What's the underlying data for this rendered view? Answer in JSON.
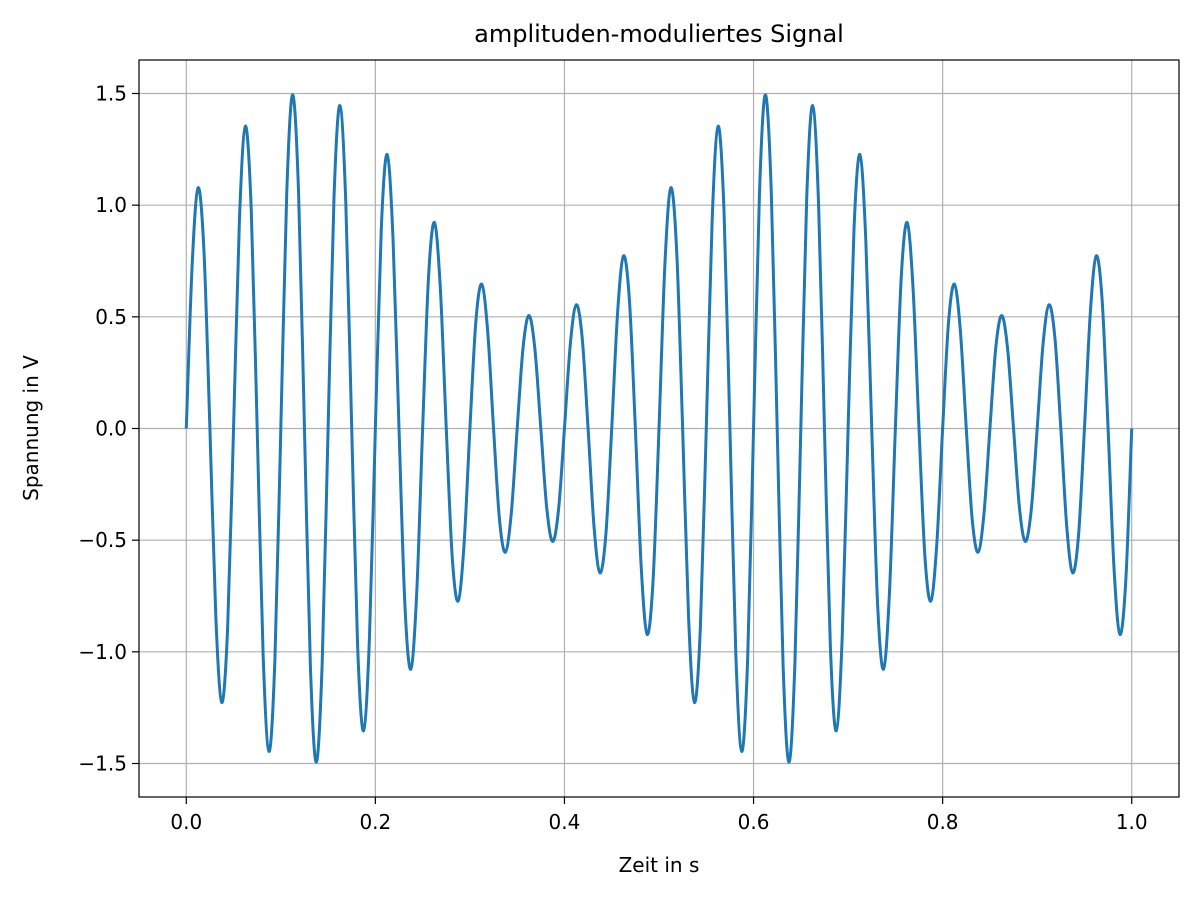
{
  "chart_data": {
    "type": "line",
    "title": "amplituden-moduliertes Signal",
    "x_label": "Zeit in s",
    "y_label": "Spannung in V",
    "x": [
      0,
      0.00625,
      0.0125,
      0.01875,
      0.025,
      0.03125,
      0.0375,
      0.04375,
      0.05,
      0.05625,
      0.0625,
      0.06875,
      0.075,
      0.08125,
      0.0875,
      0.09375,
      0.1,
      0.10625,
      0.1125,
      0.11875,
      0.125,
      0.13125,
      0.1375,
      0.14375,
      0.15,
      0.15625,
      0.1625,
      0.16875,
      0.175,
      0.18125,
      0.1875,
      0.19375,
      0.2,
      0.20625,
      0.2125,
      0.21875,
      0.225,
      0.23125,
      0.2375,
      0.24375,
      0.25,
      0.25625,
      0.2625,
      0.26875,
      0.275,
      0.28125,
      0.2875,
      0.29375,
      0.3,
      0.30625,
      0.3125,
      0.31875,
      0.325,
      0.33125,
      0.3375,
      0.34375,
      0.35,
      0.35625,
      0.3625,
      0.36875,
      0.375,
      0.38125,
      0.3875,
      0.39375,
      0.4,
      0.40625,
      0.4125,
      0.41875,
      0.425,
      0.43125,
      0.4375,
      0.44375,
      0.45,
      0.45625,
      0.4625,
      0.46875,
      0.475,
      0.48125,
      0.4875,
      0.49375,
      0.5,
      0.50625,
      0.5125,
      0.51875,
      0.525,
      0.53125,
      0.5375,
      0.54375,
      0.55,
      0.55625,
      0.5625,
      0.56875,
      0.575,
      0.58125,
      0.5875,
      0.59375,
      0.6,
      0.60625,
      0.6125,
      0.61875,
      0.625,
      0.63125,
      0.6375,
      0.64375,
      0.65,
      0.65625,
      0.6625,
      0.66875,
      0.675,
      0.68125,
      0.6875,
      0.69375,
      0.7,
      0.70625,
      0.7125,
      0.71875,
      0.725,
      0.73125,
      0.7375,
      0.74375,
      0.75,
      0.75625,
      0.7625,
      0.76875,
      0.775,
      0.78125,
      0.7875,
      0.79375,
      0.8,
      0.80625,
      0.8125,
      0.81875,
      0.825,
      0.83125,
      0.8375,
      0.84375,
      0.85,
      0.85625,
      0.8625,
      0.86875,
      0.875,
      0.88125,
      0.8875,
      0.89375,
      0.9,
      0.90625,
      0.9125,
      0.91875,
      0.925,
      0.93125,
      0.9375,
      0.94375,
      0.95,
      0.95625,
      0.9625,
      0.96875,
      0.975,
      0.98125,
      0.9875,
      0.99375,
      1
    ],
    "series": [
      {
        "name": "Signal",
        "color": "#1f77b4",
        "values": [
          0,
          0.735,
          1.078,
          0.79,
          0,
          -0.842,
          -1.227,
          -0.892,
          0,
          0.937,
          1.354,
          0.976,
          0,
          -1.009,
          -1.446,
          -1.034,
          0,
          1.051,
          1.494,
          1.06,
          0,
          -1.06,
          -1.494,
          -1.051,
          0,
          1.034,
          1.446,
          1.009,
          0,
          -0.976,
          -1.354,
          -0.937,
          0,
          0.892,
          1.227,
          0.842,
          0,
          -0.79,
          -1.078,
          -0.735,
          0,
          0.679,
          0.922,
          0.625,
          0,
          -0.572,
          -0.773,
          -0.522,
          0,
          0.477,
          0.646,
          0.438,
          0,
          -0.406,
          -0.554,
          -0.38,
          0,
          0.363,
          0.506,
          0.355,
          0,
          -0.355,
          -0.506,
          -0.363,
          0,
          0.38,
          0.554,
          0.406,
          0,
          -0.438,
          -0.646,
          -0.477,
          0,
          0.522,
          0.773,
          0.572,
          0,
          -0.625,
          -0.922,
          -0.679,
          0,
          0.735,
          1.078,
          0.79,
          0,
          -0.842,
          -1.227,
          -0.892,
          0,
          0.937,
          1.354,
          0.976,
          0,
          -1.009,
          -1.446,
          -1.034,
          0,
          1.051,
          1.494,
          1.06,
          0,
          -1.06,
          -1.494,
          -1.051,
          0,
          1.034,
          1.446,
          1.009,
          0,
          -0.976,
          -1.354,
          -0.937,
          0,
          0.892,
          1.227,
          0.842,
          0,
          -0.79,
          -1.078,
          -0.735,
          0,
          0.679,
          0.922,
          0.625,
          0,
          -0.572,
          -0.773,
          -0.522,
          0,
          0.477,
          0.646,
          0.438,
          0,
          -0.406,
          -0.554,
          -0.38,
          0,
          0.363,
          0.506,
          0.355,
          0,
          -0.355,
          -0.506,
          -0.363,
          0,
          0.38,
          0.554,
          0.406,
          0,
          -0.438,
          -0.646,
          -0.477,
          0,
          0.522,
          0.773,
          0.572,
          0,
          -0.625,
          -0.922,
          -0.679,
          0
        ]
      }
    ],
    "xlim": [
      -0.05,
      1.05
    ],
    "ylim": [
      -1.65,
      1.65
    ],
    "xticks": [
      {
        "value": 0,
        "label": "0.0"
      },
      {
        "value": 0.2,
        "label": "0.2"
      },
      {
        "value": 0.4,
        "label": "0.4"
      },
      {
        "value": 0.6,
        "label": "0.6"
      },
      {
        "value": 0.8,
        "label": "0.8"
      },
      {
        "value": 1,
        "label": "1.0"
      }
    ],
    "yticks": [
      {
        "value": -1.5,
        "label": "−1.5"
      },
      {
        "value": -1,
        "label": "−1.0"
      },
      {
        "value": -0.5,
        "label": "−0.5"
      },
      {
        "value": 0,
        "label": "0.0"
      },
      {
        "value": 0.5,
        "label": "0.5"
      },
      {
        "value": 1,
        "label": "1.0"
      },
      {
        "value": 1.5,
        "label": "1.5"
      }
    ],
    "grid": true
  }
}
